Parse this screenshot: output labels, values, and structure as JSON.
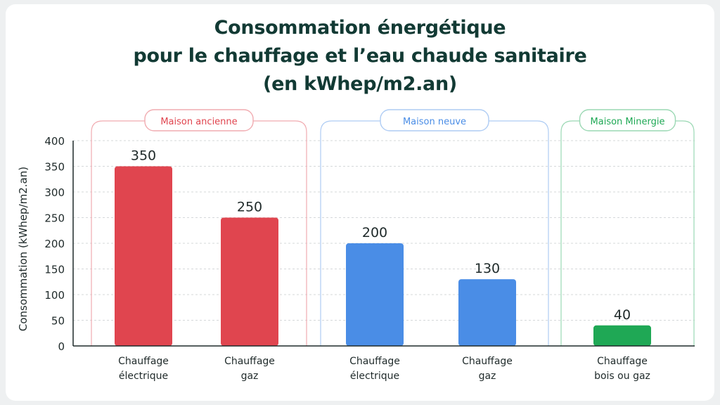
{
  "title": {
    "line1": "Consommation énergétique",
    "line2": "pour le chauffage et l’eau chaude sanitaire",
    "line3": "(en kWhep/m2.an)"
  },
  "chart_data": {
    "type": "bar",
    "title": "Consommation énergétique pour le chauffage et l’eau chaude sanitaire (en kWhep/m2.an)",
    "ylabel": "Consommation (kWhep/m2.an)",
    "xlabel": "",
    "ylim": [
      0,
      400
    ],
    "yticks": [
      0,
      50,
      100,
      150,
      200,
      250,
      300,
      350,
      400
    ],
    "grid": true,
    "groups": [
      {
        "name": "Maison ancienne",
        "color": "#e0454f",
        "bars": [
          {
            "label": [
              "Chauffage",
              "électrique"
            ],
            "value": 350
          },
          {
            "label": [
              "Chauffage",
              "gaz"
            ],
            "value": 250
          }
        ]
      },
      {
        "name": "Maison neuve",
        "color": "#4a8de6",
        "bars": [
          {
            "label": [
              "Chauffage",
              "électrique"
            ],
            "value": 200
          },
          {
            "label": [
              "Chauffage",
              "gaz"
            ],
            "value": 130
          }
        ]
      },
      {
        "name": "Maison Minergie",
        "color": "#1fa855",
        "bars": [
          {
            "label": [
              "Chauffage",
              "bois ou gaz"
            ],
            "value": 40
          }
        ]
      }
    ]
  }
}
